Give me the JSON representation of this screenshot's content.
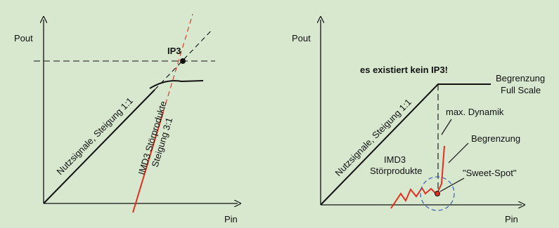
{
  "colors": {
    "background": "#d7e8cf",
    "line": "#111111",
    "accent": "#e0301e",
    "circle": "#3b5bb5"
  },
  "left_panel": {
    "y_axis_label": "Pout",
    "x_axis_label": "Pin",
    "ip3_label": "IP3",
    "useful_signal_label": "Nutzsignale, Steigung 1:1",
    "imd3_label_line1": "IMD3 Störprodukte",
    "imd3_label_line2": "Steigung 3:1"
  },
  "right_panel": {
    "y_axis_label": "Pout",
    "x_axis_label": "Pin",
    "headline": "es existiert kein  IP3!",
    "useful_signal_label": "Nutzsignale, Steigung 1:1",
    "limit_full_scale_line1": "Begrenzung",
    "limit_full_scale_line2": "Full Scale",
    "max_dynamic_label": "max. Dynamik",
    "limit_label": "Begrenzung",
    "imd3_label_line1": "IMD3",
    "imd3_label_line2": "Störprodukte",
    "sweet_spot_label": "\"Sweet-Spot\""
  }
}
